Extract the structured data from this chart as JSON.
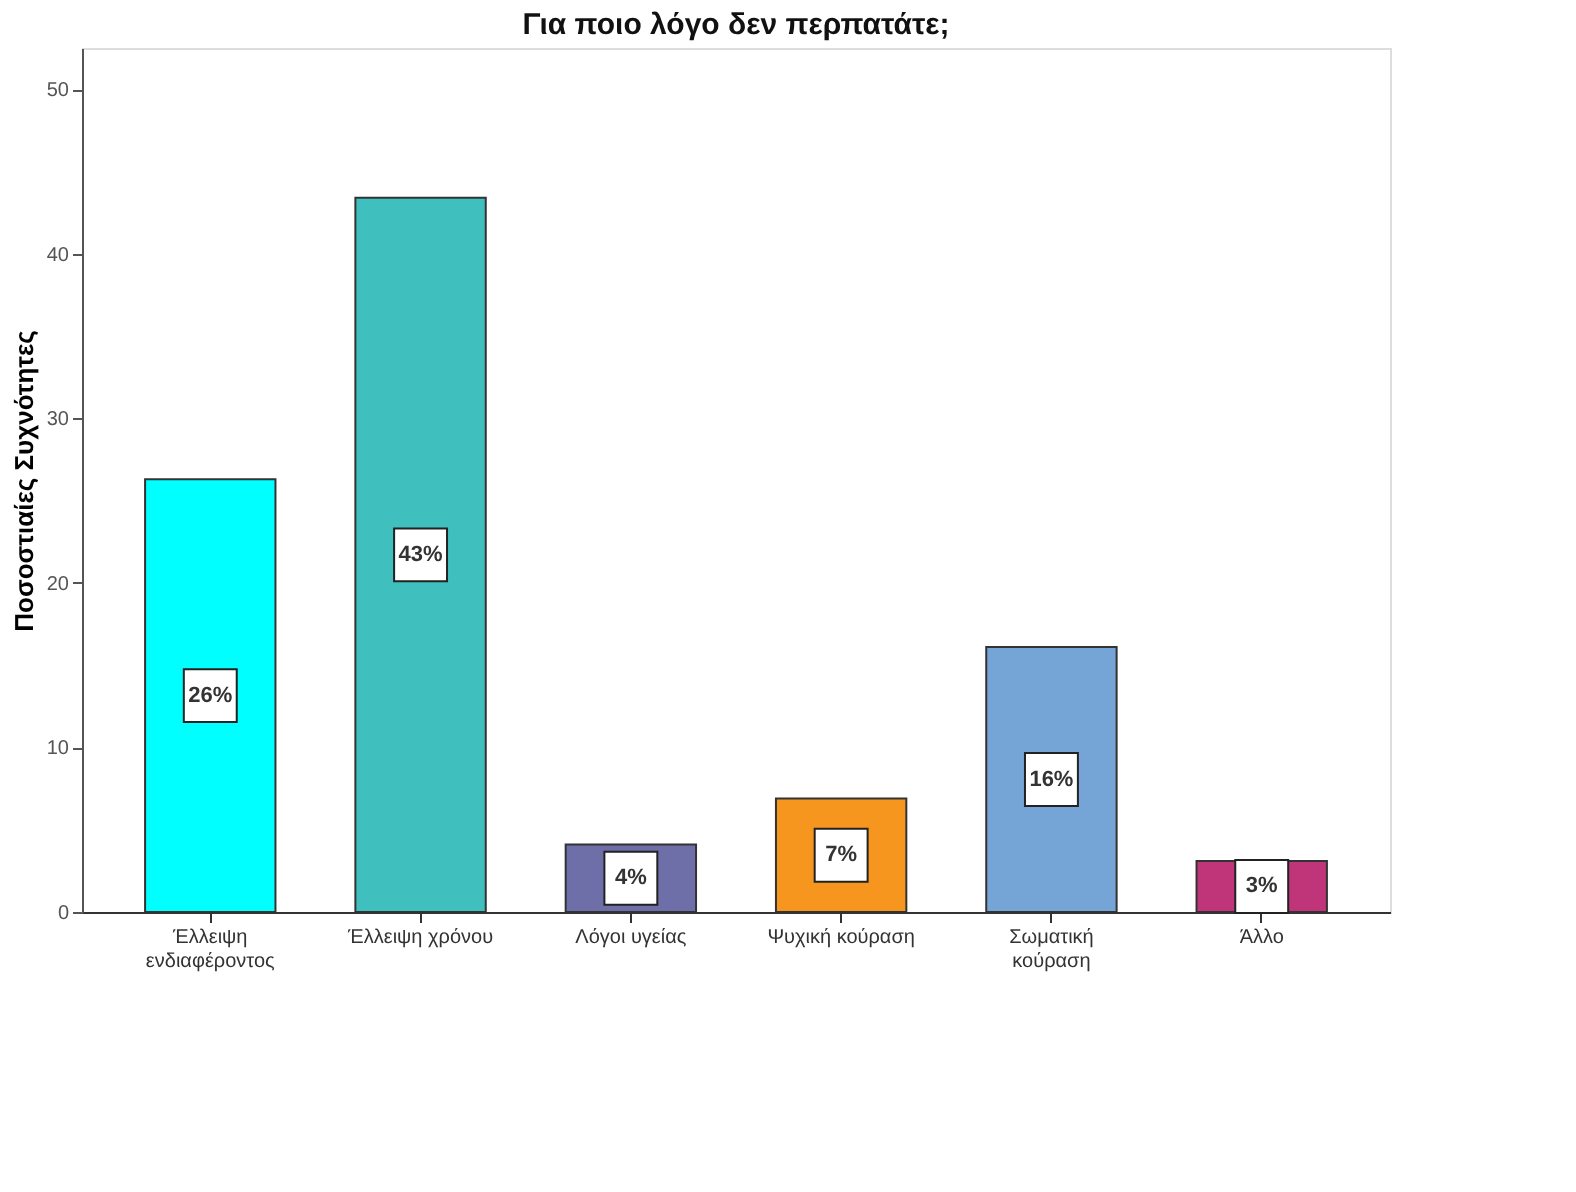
{
  "chart_data": {
    "type": "bar",
    "title": "Για ποιο λόγο δεν περπατάτε;",
    "ylabel": "Ποσοστιαίες Συχνότητες",
    "categories": [
      "Έλλειψη ενδιαφέροντος",
      "Έλλειψη χρόνου",
      "Λόγοι υγείας",
      "Ψυχική κούραση",
      "Σωματική κούραση",
      "Άλλο"
    ],
    "values": [
      26.3,
      43.4,
      4.1,
      6.9,
      16.1,
      3.1
    ],
    "value_labels": [
      "26%",
      "43%",
      "4%",
      "7%",
      "16%",
      "3%"
    ],
    "colors": [
      "#00ffff",
      "#40bfbf",
      "#6e6ea8",
      "#f7961e",
      "#74a5d6",
      "#c0347a"
    ],
    "ylim": [
      0,
      52.5
    ],
    "yticks": [
      0,
      10,
      20,
      30,
      40,
      50
    ],
    "grid": false,
    "legend": false
  }
}
